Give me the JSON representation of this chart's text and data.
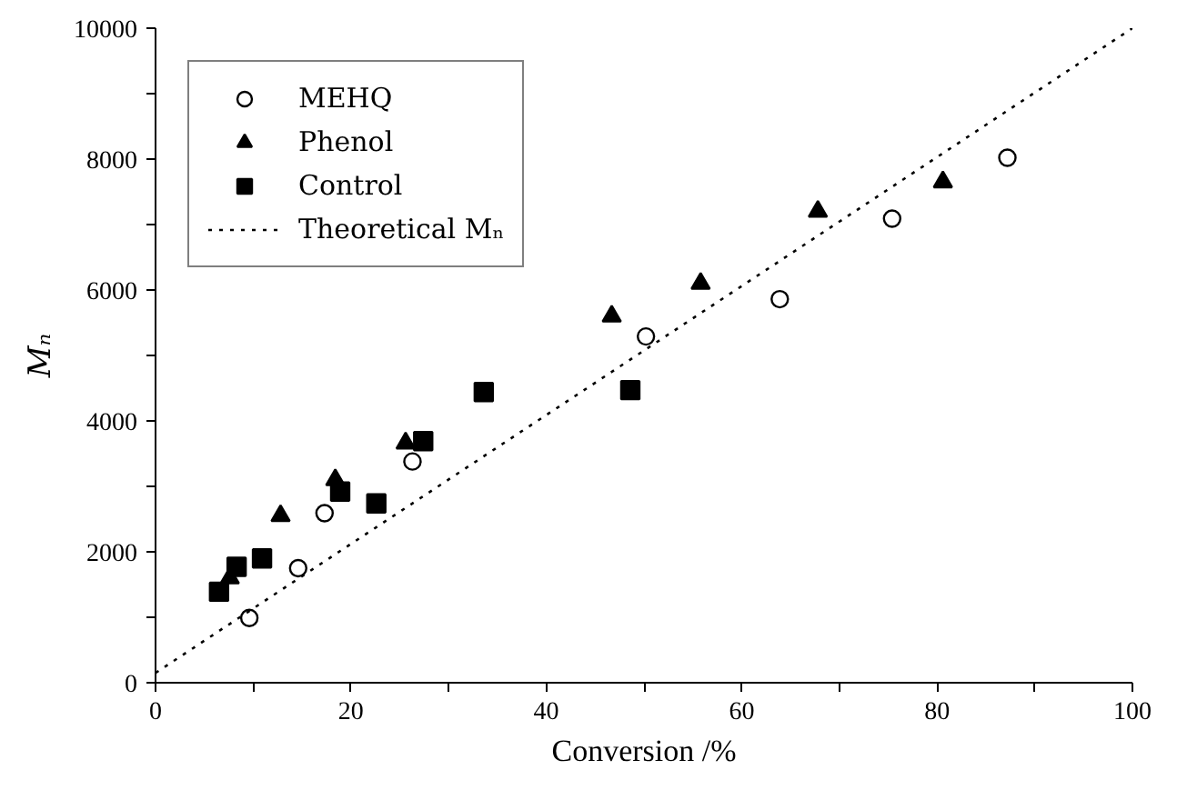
{
  "chart_data": {
    "type": "scatter",
    "xlabel": "Conversion /%",
    "ylabel": "Mₙ",
    "xlim": [
      0,
      100
    ],
    "ylim": [
      0,
      10000
    ],
    "xticks": [
      0,
      {
        "value": 10,
        "label": null
      },
      20,
      {
        "value": 30,
        "label": null
      },
      40,
      {
        "value": 50,
        "label": null
      },
      60,
      {
        "value": 70,
        "label": null
      },
      80,
      {
        "value": 90,
        "label": null
      },
      100
    ],
    "yticks": [
      0,
      {
        "value": 1000,
        "label": null
      },
      2000,
      {
        "value": 3000,
        "label": null
      },
      4000,
      {
        "value": 5000,
        "label": null
      },
      6000,
      {
        "value": 7000,
        "label": null
      },
      8000,
      {
        "value": 9000,
        "label": null
      },
      10000
    ],
    "grid": false,
    "legend": "top left",
    "series": [
      {
        "name": "MEHQ",
        "marker": "circle",
        "color": "#000000",
        "x": [
          9.6,
          14.6,
          17.3,
          26.3,
          50.2,
          63.9,
          75.4,
          87.2
        ],
        "values": [
          990,
          1750,
          2590,
          3380,
          5290,
          5860,
          7090,
          8020
        ]
      },
      {
        "name": "Phenol",
        "marker": "triangle",
        "color": "#000000",
        "x": [
          7.6,
          12.8,
          18.4,
          25.6,
          46.7,
          55.8,
          67.8,
          80.6
        ],
        "values": [
          1600,
          2550,
          3100,
          3660,
          5600,
          6100,
          7200,
          7650
        ]
      },
      {
        "name": "Control",
        "marker": "square",
        "color": "#000000",
        "x": [
          6.5,
          8.3,
          10.9,
          18.9,
          22.6,
          27.4,
          33.6,
          48.6
        ],
        "values": [
          1390,
          1770,
          1900,
          2920,
          2740,
          3690,
          4440,
          4470
        ]
      },
      {
        "name": "Theoretical Mₙ",
        "type": "line",
        "line_style": "dotted",
        "color": "#000000",
        "x": [
          0,
          100
        ],
        "values": [
          150,
          10000
        ]
      }
    ]
  }
}
